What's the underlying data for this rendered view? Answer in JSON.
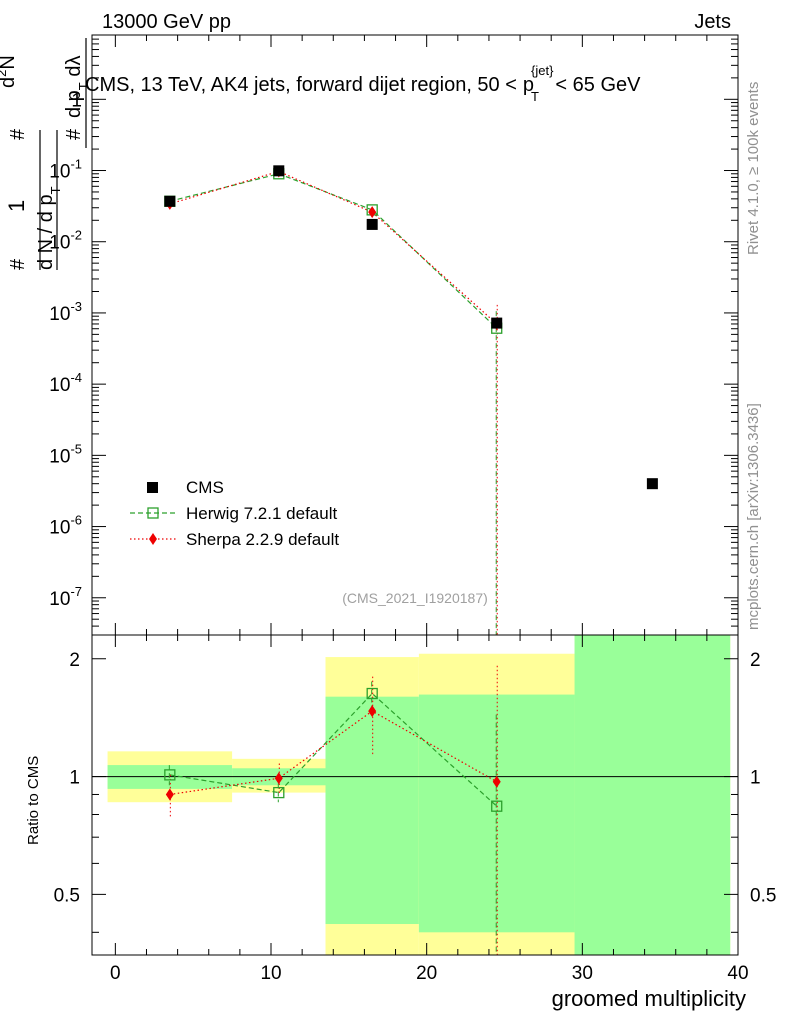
{
  "header": {
    "left": "13000 GeV pp",
    "right": "Jets"
  },
  "side_texts": {
    "rivet": "Rivet 4.1.0, ≥ 100k events",
    "mcplots": "mcplots.cern.ch [arXiv:1306.3436]"
  },
  "watermark": "(CMS_2021_I1920187)",
  "colors": {
    "cms": "#000000",
    "herwig": "#2ca02c",
    "sherpa": "#ee0000",
    "band_inner": "#99ff99",
    "band_outer": "#ffff99"
  },
  "chart_data": [
    {
      "type": "scatter",
      "panel": "main",
      "title": "CMS, 13 TeV, AK4 jets, forward dijet region, 50 < p_T^{jet} < 65 GeV",
      "title_parts": {
        "prefix": "CMS, 13 TeV, AK4 jets, forward dijet region, 50 <",
        "p": "p",
        "sub": "T",
        "sup": "{jet}",
        "suffix": "< 65 GeV"
      },
      "ylabel": "1/(dN/dp_T) d²N/(dp_T dλ)",
      "yscale": "log",
      "ylim": [
        3e-08,
        8
      ],
      "xlim": [
        -1.5,
        40
      ],
      "yticks": [
        {
          "value": 1,
          "label": "1"
        },
        {
          "value": 0.1,
          "label": "10",
          "exp": "-1"
        },
        {
          "value": 0.01,
          "label": "10",
          "exp": "-2"
        },
        {
          "value": 0.001,
          "label": "10",
          "exp": "-3"
        },
        {
          "value": 0.0001,
          "label": "10",
          "exp": "-4"
        },
        {
          "value": 1e-05,
          "label": "10",
          "exp": "-5"
        },
        {
          "value": 1e-06,
          "label": "10",
          "exp": "-6"
        },
        {
          "value": 1e-07,
          "label": "10",
          "exp": "-7"
        }
      ],
      "legend_position": "bottom-left",
      "series": [
        {
          "name": "CMS",
          "style": "data",
          "x": [
            3.5,
            10.5,
            16.5,
            24.5,
            34.5
          ],
          "y": [
            0.037,
            0.099,
            0.0175,
            0.00072,
            4e-06
          ]
        },
        {
          "name": "Herwig 7.2.1 default",
          "style": "herwig",
          "x": [
            3.5,
            10.5,
            16.5,
            24.5
          ],
          "y": [
            0.037,
            0.09,
            0.028,
            0.00061
          ],
          "err_lo": [
            0.002,
            0.004,
            0.002,
            0.00061
          ],
          "err_hi": [
            0.002,
            0.004,
            0.002,
            0.00045
          ]
        },
        {
          "name": "Sherpa 2.2.9 default",
          "style": "sherpa",
          "x": [
            3.5,
            10.5,
            16.5,
            24.5
          ],
          "y": [
            0.034,
            0.097,
            0.026,
            0.0007
          ],
          "err_lo": [
            0.003,
            0.005,
            0.003,
            0.0007
          ],
          "err_hi": [
            0.003,
            0.005,
            0.003,
            0.0006
          ]
        }
      ]
    },
    {
      "type": "scatter",
      "panel": "ratio",
      "ylabel": "Ratio to CMS",
      "xlabel": "groomed multiplicity",
      "yscale": "log",
      "ylim": [
        0.35,
        2.3
      ],
      "xlim": [
        -1.5,
        40
      ],
      "yticks": [
        {
          "value": 0.5,
          "label": "0.5"
        },
        {
          "value": 1,
          "label": "1"
        },
        {
          "value": 2,
          "label": "2"
        }
      ],
      "xticks": [
        0,
        10,
        20,
        30,
        40
      ],
      "reference_line": 1,
      "bands": [
        {
          "x0": -0.5,
          "x1": 7.5,
          "inner": [
            0.93,
            1.07
          ],
          "outer": [
            0.86,
            1.16
          ]
        },
        {
          "x0": 7.5,
          "x1": 13.5,
          "inner": [
            0.95,
            1.05
          ],
          "outer": [
            0.91,
            1.11
          ]
        },
        {
          "x0": 13.5,
          "x1": 19.5,
          "inner": [
            0.42,
            1.6
          ],
          "outer": [
            0.35,
            2.02
          ]
        },
        {
          "x0": 19.5,
          "x1": 29.5,
          "inner": [
            0.4,
            1.62
          ],
          "outer": [
            0.35,
            2.06
          ]
        },
        {
          "x0": 29.5,
          "x1": 39.5,
          "inner": [
            0.35,
            2.3
          ],
          "outer": [
            0.35,
            2.3
          ]
        }
      ],
      "series": [
        {
          "name": "Herwig 7.2.1 default",
          "style": "herwig",
          "x": [
            3.5,
            10.5,
            16.5,
            24.5
          ],
          "y": [
            1.01,
            0.91,
            1.63,
            0.84
          ],
          "err_lo": [
            0.06,
            0.05,
            0.12,
            0.49
          ],
          "err_hi": [
            0.06,
            0.05,
            0.12,
            0.6
          ]
        },
        {
          "name": "Sherpa 2.2.9 default",
          "style": "sherpa",
          "x": [
            3.5,
            10.5,
            16.5,
            24.5
          ],
          "y": [
            0.9,
            0.99,
            1.47,
            0.97
          ],
          "err_lo": [
            0.11,
            0.09,
            0.33,
            0.62
          ],
          "err_hi": [
            0.11,
            0.09,
            0.33,
            0.95
          ]
        }
      ]
    }
  ]
}
